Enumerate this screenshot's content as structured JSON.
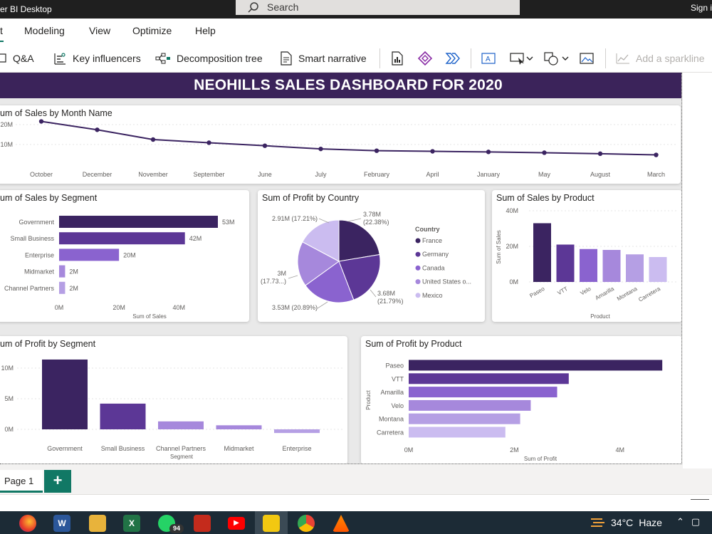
{
  "window": {
    "title": "er BI Desktop",
    "search_placeholder": "Search",
    "signin": "Sign i"
  },
  "menu": {
    "active_fragment": "t",
    "items": [
      "Modeling",
      "View",
      "Optimize",
      "Help"
    ]
  },
  "ribbon": {
    "qa": "Q&A",
    "key_influencers": "Key influencers",
    "decomposition_tree": "Decomposition tree",
    "smart_narrative": "Smart narrative",
    "sparkline": "Add a sparkline"
  },
  "dashboard": {
    "banner": "NEOHILLS SALES DASHBOARD FOR 2020",
    "accent": "#3b235a"
  },
  "colors": {
    "c1": "#3b2461",
    "c2": "#5c3796",
    "c3": "#8a63cf",
    "c4": "#a688dc",
    "c5": "#b59fe4",
    "c6": "#cbbcf0"
  },
  "chart_data": [
    {
      "id": "sales_month",
      "type": "line",
      "title": "um of Sales by Month Name",
      "categories": [
        "October",
        "December",
        "November",
        "September",
        "June",
        "July",
        "February",
        "April",
        "January",
        "May",
        "August",
        "March"
      ],
      "values": [
        21.6,
        17.4,
        12.5,
        10.9,
        9.4,
        7.8,
        6.9,
        6.6,
        6.3,
        5.9,
        5.4,
        4.8
      ],
      "yticks": [
        "20M",
        "10M"
      ],
      "ylim": [
        0,
        25
      ]
    },
    {
      "id": "sales_segment",
      "type": "bar",
      "orientation": "horizontal",
      "title": "um of Sales by Segment",
      "categories": [
        "Government",
        "Small Business",
        "Enterprise",
        "Midmarket",
        "Channel Partners"
      ],
      "values": [
        53,
        42,
        20,
        2,
        2
      ],
      "labels": [
        "53M",
        "42M",
        "20M",
        "2M",
        "2M"
      ],
      "xticks": [
        "0M",
        "20M",
        "40M"
      ],
      "xlabel": "Sum of Sales",
      "xlim": [
        0,
        53
      ]
    },
    {
      "id": "profit_country",
      "type": "pie",
      "title": "Sum of Profit by Country",
      "legend_title": "Country",
      "slices": [
        {
          "name": "France",
          "value": 22.38,
          "label": "3.78M\n(22.38%)"
        },
        {
          "name": "Germany",
          "value": 21.79,
          "label": "3.68M\n(21.79%)"
        },
        {
          "name": "Canada",
          "value": 20.89,
          "label": "3.53M (20.89%)"
        },
        {
          "name": "United States o...",
          "value": 17.73,
          "label": "3M\n(17.73...)"
        },
        {
          "name": "Mexico",
          "value": 17.21,
          "label": "2.91M (17.21%)"
        }
      ]
    },
    {
      "id": "sales_product",
      "type": "bar",
      "orientation": "vertical",
      "title": "Sum of Sales by Product",
      "categories": [
        "Paseo",
        "VTT",
        "Velo",
        "Amarilla",
        "Montana",
        "Carretera"
      ],
      "values": [
        33,
        21,
        18.5,
        18,
        15.5,
        14
      ],
      "yticks": [
        "40M",
        "20M",
        "0M"
      ],
      "ylabel": "Sum of Sales",
      "xlabel": "Product",
      "ylim": [
        0,
        40
      ]
    },
    {
      "id": "profit_segment",
      "type": "bar",
      "orientation": "vertical",
      "title": "um of Profit by Segment",
      "categories": [
        "Government",
        "Small Business",
        "Channel Partners",
        "Midmarket",
        "Enterprise"
      ],
      "values": [
        11.4,
        4.2,
        1.3,
        0.66,
        -0.6
      ],
      "yticks": [
        "10M",
        "5M",
        "0M"
      ],
      "xlabel": "Segment",
      "ylim": [
        -1,
        12
      ]
    },
    {
      "id": "profit_product",
      "type": "bar",
      "orientation": "horizontal",
      "title": "Sum of Profit by Product",
      "categories": [
        "Paseo",
        "VTT",
        "Amarilla",
        "Velo",
        "Montana",
        "Carretera"
      ],
      "values": [
        4.8,
        3.03,
        2.81,
        2.31,
        2.11,
        1.83
      ],
      "xticks": [
        "0M",
        "2M",
        "4M"
      ],
      "xlabel": "Sum of Profit",
      "ylabel": "Product",
      "xlim": [
        0,
        5
      ]
    }
  ],
  "pages": {
    "tab": "Page 1",
    "add": "+"
  },
  "taskbar": {
    "temp": "34°C",
    "weather": "Haze",
    "badge": "94"
  }
}
